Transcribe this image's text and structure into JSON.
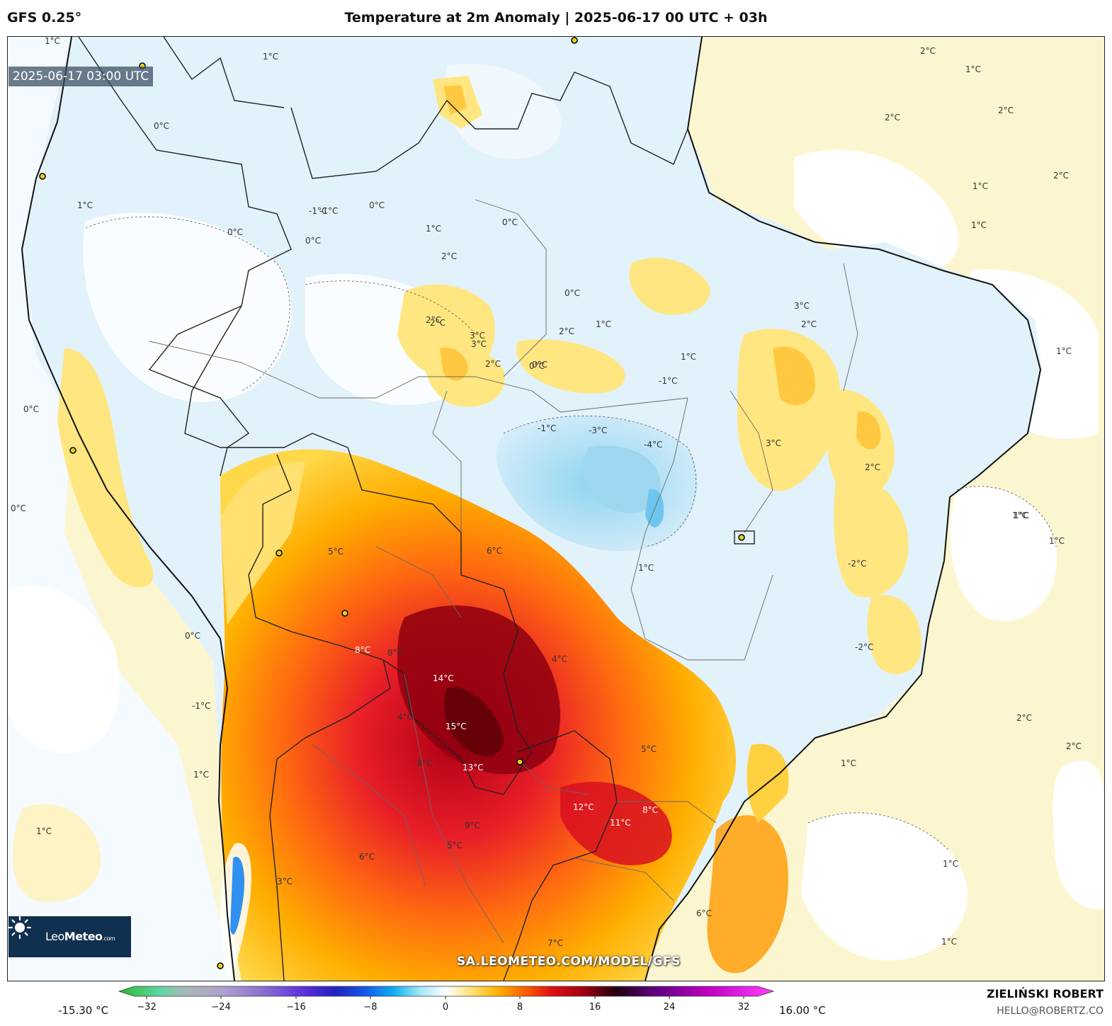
{
  "header": {
    "model": "GFS 0.25°",
    "title": "Temperature at 2m Anomaly | 2025-06-17 00 UTC + 03h"
  },
  "map": {
    "valid_time": "2025-06-17 03:00 UTC",
    "watermark": "SA.LEOMETEO.COM/MODEL/GFS",
    "brand": {
      "name_a": "Leo",
      "name_b": "Meteo",
      "suffix": ".com",
      "icon": "sun-icon"
    },
    "contour_labels": [
      "1°C",
      "1°C",
      "2°C",
      "2°C",
      "2°C",
      "1°C",
      "0°C",
      "1°C",
      "-1°C",
      "0°C",
      "1°C",
      "0°C",
      "0°C",
      "-1°C",
      "0°C",
      "2°C",
      "2°C",
      "3°C",
      "2°C",
      "3°C",
      "2°C",
      "2°C",
      "0°C",
      "0°C",
      "1°C",
      "-1°C",
      "-3°C",
      "-4°C",
      "1°C",
      "3°C",
      "2°C",
      "3°C",
      "2°C",
      "1°C",
      "2°C",
      "1°C",
      "1°C",
      "-2°C",
      "-2°C",
      "-1°C",
      "0°C",
      "0°C",
      "0°C",
      "-1°C",
      "1°C",
      "0°C",
      "5°C",
      "6°C",
      "8°C",
      "8°C",
      "14°C",
      "15°C",
      "13°C",
      "12°C",
      "11°C",
      "8°C",
      "5°C",
      "4°C",
      "4°C",
      "6°C",
      "9°C",
      "5°C",
      "6°C",
      "3°C",
      "6°C",
      "7°C",
      "1°C",
      "1°C",
      "1°C",
      "2°C",
      "1°C",
      "1°C",
      "1°C",
      "1°C",
      "2°C",
      "1°C"
    ]
  },
  "colorbar": {
    "min_label": "-15.30 °C",
    "max_label": "16.00 °C",
    "ticks": [
      "−32",
      "−24",
      "−16",
      "−8",
      "0",
      "8",
      "16",
      "24",
      "32"
    ],
    "stops": [
      "#2db82d",
      "#5ad8a0",
      "#a8a8c8",
      "#8a70d0",
      "#6030e0",
      "#2020c0",
      "#1060f0",
      "#10b0f0",
      "#a0e8f8",
      "#ffffff",
      "#ffe070",
      "#ffb000",
      "#ff6000",
      "#e01010",
      "#a00010",
      "#200010",
      "#600080",
      "#c000c0",
      "#ff40ff"
    ]
  },
  "credits": {
    "author": "ZIELIŃSKI ROBERT",
    "email": "HELLO@ROBERTZ.CO"
  }
}
